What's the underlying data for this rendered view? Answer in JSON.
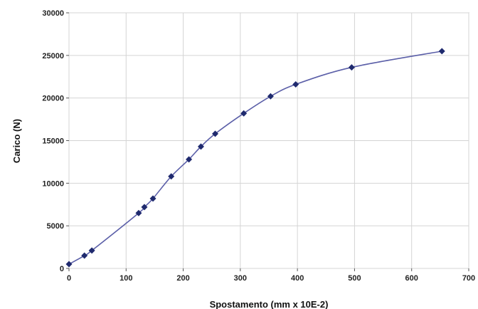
{
  "chart_data": {
    "type": "line",
    "xlabel": "Spostamento (mm x 10E-2)",
    "ylabel": "Carico (N)",
    "xlim": [
      0,
      700
    ],
    "ylim": [
      0,
      30000
    ],
    "x_ticks": [
      0,
      100,
      200,
      300,
      400,
      500,
      600,
      700
    ],
    "y_ticks": [
      0,
      5000,
      10000,
      15000,
      20000,
      25000,
      30000
    ],
    "x_tick_labels": [
      "0",
      "100",
      "200",
      "300",
      "400",
      "500",
      "600",
      "700"
    ],
    "y_tick_labels": [
      "0",
      "5000",
      "10000",
      "15000",
      "20000",
      "25000",
      "30000"
    ],
    "grid": true,
    "line_color": "#5b5fa8",
    "marker_color": "#1f2a6e",
    "marker": "diamond",
    "series": [
      {
        "x": [
          0,
          27,
          40,
          122,
          132,
          147,
          179,
          210,
          231,
          256,
          306,
          353,
          397,
          495,
          653
        ],
        "y": [
          500,
          1500,
          2100,
          6500,
          7200,
          8200,
          10800,
          12800,
          14300,
          15800,
          18200,
          20200,
          21600,
          23600,
          25500
        ]
      }
    ]
  }
}
